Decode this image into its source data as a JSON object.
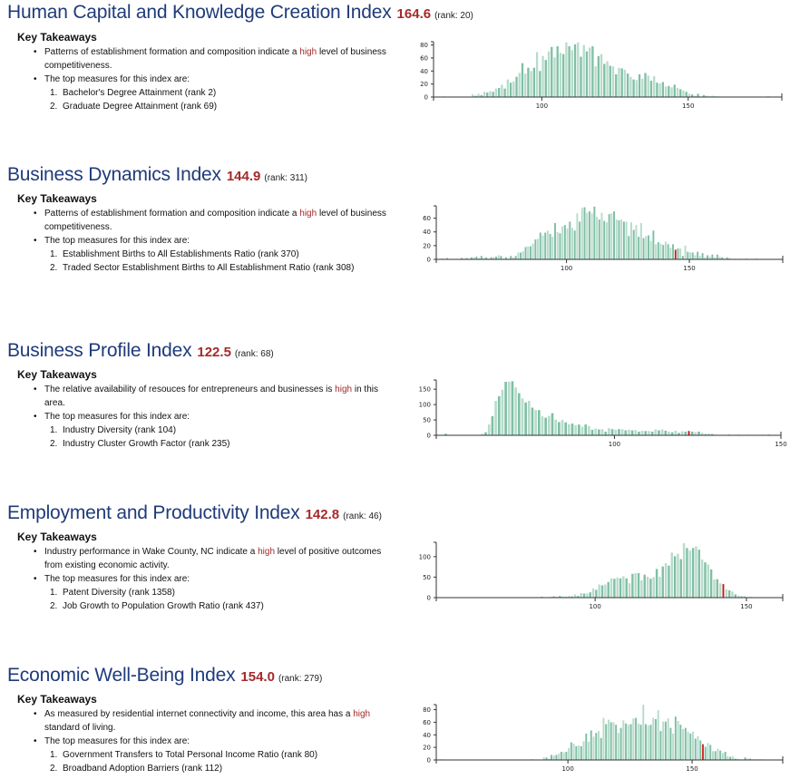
{
  "sections": [
    {
      "title": "Human Capital and Knowledge Creation Index",
      "score": "164.6",
      "rank": "(rank: 20)",
      "key_takeaways": "Key Takeaways",
      "bullet1_pre": "Patterns of establishment formation and composition indicate a ",
      "bullet1_hl": "high",
      "bullet1_post": " level of business competitiveness.",
      "bullet2": "The top measures for this index are:",
      "measures": [
        "Bachelor's Degree Attainment (rank 2)",
        "Graduate Degree Attainment (rank 69)"
      ]
    },
    {
      "title": "Business Dynamics Index",
      "score": "144.9",
      "rank": "(rank: 311)",
      "key_takeaways": "Key Takeaways",
      "bullet1_pre": "Patterns of establishment formation and composition indicate a ",
      "bullet1_hl": "high",
      "bullet1_post": " level of business competitiveness.",
      "bullet2": "The top measures for this index are:",
      "measures": [
        "Establishment Births to All Establishments Ratio (rank 370)",
        "Traded Sector Establishment Births to All Establishment Ratio (rank 308)"
      ]
    },
    {
      "title": "Business Profile Index",
      "score": "122.5",
      "rank": "(rank: 68)",
      "key_takeaways": "Key Takeaways",
      "bullet1_pre": "The relative availability of resouces for entrepreneurs and businesses is ",
      "bullet1_hl": "high",
      "bullet1_post": " in this area.",
      "bullet2": "The top measures for this index are:",
      "measures": [
        "Industry Diversity (rank 104)",
        "Industry Cluster Growth Factor (rank 235)"
      ]
    },
    {
      "title": "Employment and Productivity Index",
      "score": "142.8",
      "rank": "(rank: 46)",
      "key_takeaways": "Key Takeaways",
      "bullet1_pre": "Industry performance in Wake County, NC indicate a ",
      "bullet1_hl": "high",
      "bullet1_post": " level of positive outcomes from existing economic activity.",
      "bullet2": "The top measures for this index are:",
      "measures": [
        "Patent Diversity (rank 1358)",
        "Job Growth to Population Growth Ratio (rank 437)"
      ]
    },
    {
      "title": "Economic Well-Being Index",
      "score": "154.0",
      "rank": "(rank: 279)",
      "key_takeaways": "Key Takeaways",
      "bullet1_pre": "As measured by residential internet connectivity and income, this area has a ",
      "bullet1_hl": "high",
      "bullet1_post": " standard of living.",
      "bullet2": "The top measures for this index are:",
      "measures": [
        "Government Transfers to Total Personal Income Ratio (rank 80)",
        "Broadband Adoption Barriers (rank 112)"
      ]
    }
  ],
  "colors": {
    "title": "#1f3b7a",
    "score": "#a52a2a",
    "bar_dark": "#7fbfa5",
    "bar_light": "#b7dccc",
    "highlight": "#cc1111"
  },
  "chart_data": [
    {
      "type": "bar",
      "title": "Human Capital and Knowledge Creation Index distribution",
      "xlim": [
        63,
        182
      ],
      "ylim": [
        0,
        85
      ],
      "xticks": [
        100,
        150
      ],
      "yticks": [
        0,
        20,
        40,
        60,
        80
      ],
      "bin_start": 63,
      "bin_width": 1,
      "highlight_value": 164.6,
      "counts": [
        0,
        0,
        0,
        1,
        0,
        0,
        0,
        0,
        0,
        0,
        0,
        0,
        0,
        4,
        2,
        5,
        3,
        8,
        7,
        9,
        8,
        13,
        14,
        19,
        13,
        27,
        22,
        24,
        31,
        37,
        52,
        36,
        45,
        40,
        45,
        69,
        40,
        63,
        57,
        70,
        77,
        61,
        78,
        68,
        66,
        84,
        78,
        72,
        81,
        84,
        62,
        80,
        70,
        76,
        78,
        47,
        63,
        66,
        51,
        55,
        48,
        47,
        35,
        45,
        44,
        42,
        36,
        31,
        27,
        26,
        35,
        28,
        37,
        33,
        25,
        32,
        22,
        21,
        23,
        16,
        17,
        15,
        19,
        14,
        12,
        10,
        8,
        5,
        4,
        2,
        5,
        1,
        3,
        2,
        1,
        2,
        1,
        1,
        0,
        0,
        0,
        0,
        0,
        0,
        0,
        0,
        0,
        0,
        0,
        0,
        0,
        0,
        0,
        0,
        1,
        0,
        0,
        0,
        0
      ]
    },
    {
      "type": "bar",
      "title": "Business Dynamics Index distribution",
      "xlim": [
        47,
        188
      ],
      "ylim": [
        0,
        78
      ],
      "xticks": [
        100,
        150
      ],
      "yticks": [
        0,
        20,
        40,
        60
      ],
      "bin_start": 47,
      "bin_width": 1,
      "highlight_value": 144.9,
      "counts": [
        0,
        0,
        1,
        0,
        2,
        0,
        0,
        0,
        0,
        0,
        2,
        1,
        2,
        1,
        3,
        3,
        4,
        2,
        5,
        2,
        3,
        1,
        3,
        3,
        4,
        6,
        5,
        1,
        3,
        1,
        5,
        3,
        5,
        10,
        10,
        12,
        18,
        19,
        19,
        23,
        29,
        30,
        39,
        35,
        39,
        42,
        37,
        33,
        53,
        40,
        38,
        48,
        50,
        45,
        55,
        46,
        42,
        67,
        55,
        75,
        76,
        68,
        70,
        67,
        77,
        62,
        58,
        68,
        56,
        54,
        66,
        67,
        70,
        58,
        57,
        58,
        55,
        55,
        34,
        54,
        43,
        50,
        33,
        53,
        31,
        34,
        35,
        27,
        42,
        22,
        25,
        23,
        21,
        26,
        22,
        17,
        22,
        14,
        16,
        16,
        5,
        20,
        11,
        10,
        10,
        6,
        11,
        5,
        9,
        3,
        6,
        4,
        7,
        3,
        7,
        4,
        3,
        1,
        3,
        2,
        0,
        1,
        0,
        1,
        0,
        0,
        1,
        0,
        0,
        0,
        1,
        0,
        0,
        0,
        0,
        0,
        0,
        0,
        0,
        0,
        0
      ]
    },
    {
      "type": "bar",
      "title": "Business Profile Index distribution",
      "xlim": [
        46.5,
        150
      ],
      "ylim": [
        0,
        180
      ],
      "xticks": [
        100,
        150
      ],
      "yticks": [
        0,
        50,
        100,
        150
      ],
      "bin_start": 47,
      "bin_width": 1,
      "highlight_value": 122.5,
      "counts": [
        0,
        0,
        5,
        0,
        0,
        0,
        0,
        0,
        0,
        0,
        0,
        0,
        0,
        5,
        10,
        35,
        62,
        112,
        127,
        148,
        174,
        174,
        176,
        156,
        137,
        120,
        107,
        112,
        90,
        82,
        82,
        62,
        57,
        63,
        72,
        51,
        43,
        50,
        42,
        36,
        38,
        33,
        35,
        28,
        35,
        30,
        18,
        22,
        19,
        20,
        12,
        23,
        20,
        18,
        20,
        20,
        16,
        18,
        16,
        17,
        12,
        15,
        14,
        14,
        12,
        19,
        16,
        19,
        15,
        12,
        10,
        15,
        8,
        13,
        12,
        14,
        12,
        10,
        12,
        8,
        4,
        6,
        4,
        2,
        1,
        0,
        1,
        3,
        0,
        1,
        2,
        1,
        0,
        2,
        0,
        1,
        0,
        2,
        1,
        3,
        0,
        0,
        0
      ]
    },
    {
      "type": "bar",
      "title": "Employment and Productivity Index distribution",
      "xlim": [
        47.5,
        162
      ],
      "ylim": [
        0,
        135
      ],
      "xticks": [
        100,
        150
      ],
      "yticks": [
        0,
        50,
        100
      ],
      "bin_start": 48,
      "bin_width": 1,
      "highlight_value": 142.8,
      "counts": [
        0,
        1,
        0,
        0,
        0,
        0,
        0,
        0,
        0,
        0,
        0,
        0,
        0,
        0,
        0,
        0,
        0,
        0,
        0,
        0,
        0,
        0,
        0,
        0,
        0,
        0,
        0,
        1,
        1,
        0,
        1,
        1,
        1,
        0,
        2,
        1,
        0,
        2,
        3,
        2,
        4,
        3,
        2,
        4,
        3,
        8,
        4,
        11,
        10,
        10,
        13,
        22,
        19,
        32,
        30,
        32,
        38,
        47,
        46,
        49,
        47,
        52,
        47,
        35,
        58,
        60,
        60,
        42,
        56,
        51,
        46,
        50,
        70,
        51,
        76,
        84,
        78,
        110,
        101,
        107,
        94,
        133,
        121,
        115,
        121,
        125,
        117,
        93,
        86,
        81,
        69,
        44,
        45,
        35,
        33,
        20,
        18,
        15,
        8,
        5,
        3,
        4,
        1,
        2,
        1,
        0,
        1,
        1,
        0,
        0,
        1,
        0,
        0,
        0,
        0
      ]
    },
    {
      "type": "bar",
      "title": "Economic Well-Being Index distribution",
      "xlim": [
        47,
        186.5
      ],
      "ylim": [
        0,
        88
      ],
      "xticks": [
        100,
        150
      ],
      "yticks": [
        0,
        20,
        40,
        60,
        80
      ],
      "bin_start": 47,
      "bin_width": 1,
      "highlight_value": 154.0,
      "counts": [
        0,
        0,
        1,
        0,
        0,
        0,
        0,
        0,
        0,
        0,
        0,
        0,
        0,
        0,
        0,
        0,
        0,
        0,
        0,
        0,
        0,
        0,
        0,
        0,
        0,
        0,
        0,
        0,
        0,
        0,
        0,
        0,
        0,
        0,
        0,
        0,
        0,
        0,
        1,
        0,
        0,
        0,
        0,
        4,
        4,
        2,
        8,
        7,
        8,
        10,
        13,
        12,
        13,
        19,
        28,
        26,
        22,
        23,
        22,
        30,
        42,
        29,
        47,
        37,
        43,
        46,
        35,
        67,
        57,
        64,
        60,
        60,
        56,
        43,
        51,
        63,
        58,
        56,
        57,
        66,
        67,
        58,
        56,
        88,
        57,
        55,
        56,
        67,
        65,
        79,
        46,
        61,
        61,
        66,
        51,
        42,
        69,
        62,
        56,
        49,
        51,
        45,
        42,
        45,
        34,
        38,
        31,
        25,
        21,
        27,
        24,
        14,
        14,
        18,
        15,
        11,
        13,
        6,
        5,
        6,
        2,
        2,
        1,
        0,
        4,
        2,
        2,
        1,
        1,
        1,
        1,
        1,
        0,
        0,
        0,
        0,
        0,
        0,
        0,
        0,
        0
      ]
    }
  ]
}
